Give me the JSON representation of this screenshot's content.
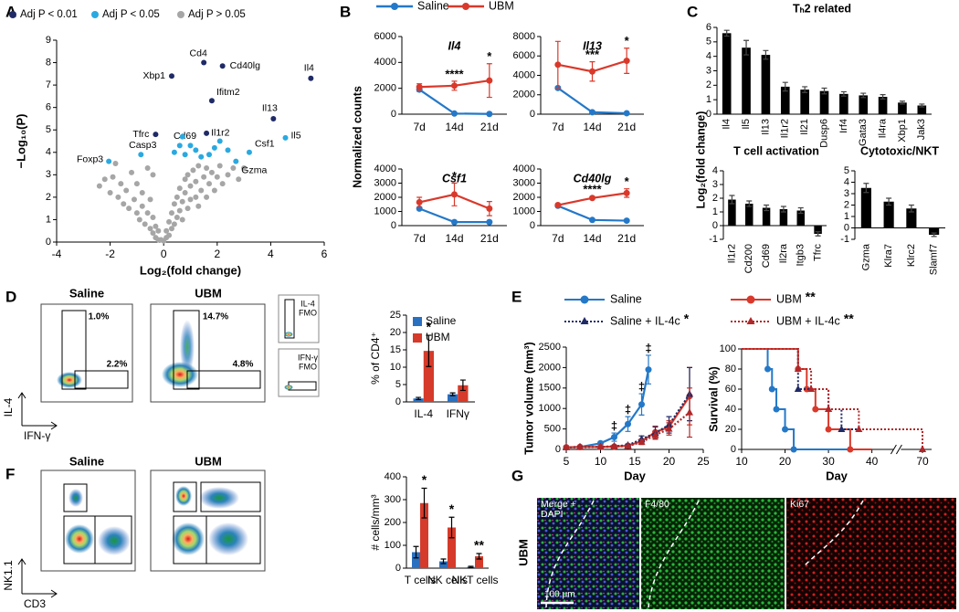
{
  "panels": [
    "A",
    "B",
    "C",
    "D",
    "E",
    "F",
    "G"
  ],
  "chart_data": [
    {
      "type": "scatter",
      "xlabel": "Log₂(fold change)",
      "ylabel": "−Log₁₀(P)",
      "xlim": [
        -4,
        6
      ],
      "xticks": [
        -4,
        -2,
        0,
        2,
        4,
        6
      ],
      "ylim": [
        0,
        9
      ],
      "yticks": [
        0,
        1,
        2,
        3,
        4,
        5,
        6,
        7,
        8,
        9
      ],
      "series": [
        {
          "name": "Adj P < 0.01",
          "color": "#1f2a66",
          "x": [
            5.5,
            1.5,
            2.2,
            0.3,
            1.8,
            4.1,
            -0.3,
            1.6
          ],
          "values": [
            7.3,
            8.0,
            7.85,
            7.4,
            6.3,
            5.5,
            4.8,
            4.85
          ],
          "point_labels": [
            "Il4",
            "Cd4",
            "Cd40lg",
            "Xbp1",
            "Ifitm2",
            "Il13",
            "Tfrc",
            "Il1r2"
          ]
        },
        {
          "name": "Adj P < 0.05",
          "color": "#2aa9e0",
          "x": [
            4.55,
            3.2,
            2.7,
            -0.85,
            -2.05,
            1.0,
            0.4,
            0.6,
            0.8,
            1.2,
            1.4,
            1.9,
            2.1,
            1.7,
            2.4,
            0.7
          ],
          "values": [
            4.65,
            4.0,
            3.6,
            3.9,
            3.6,
            4.3,
            4.0,
            4.3,
            3.9,
            4.1,
            3.8,
            4.2,
            4.5,
            3.9,
            4.1,
            4.7
          ],
          "point_labels": [
            "Il5",
            "Csf1",
            "Gzma",
            "Casp3",
            "Foxp3",
            "Cd69",
            null,
            null,
            null,
            null,
            null,
            null,
            null,
            null,
            null,
            null
          ]
        },
        {
          "name": "Adj P > 0.05",
          "color": "#a6a6a6",
          "x": [
            -2.4,
            -2.2,
            -2.0,
            -1.9,
            -1.7,
            -1.6,
            -1.5,
            -1.4,
            -1.3,
            -1.2,
            -1.1,
            -1.0,
            -1.0,
            -0.9,
            -0.8,
            -0.8,
            -0.7,
            -0.6,
            -0.6,
            -0.5,
            -0.5,
            -0.4,
            -0.4,
            -0.3,
            -0.3,
            -0.2,
            -0.2,
            -0.1,
            0,
            0.1,
            0.1,
            0.2,
            0.2,
            0.3,
            0.3,
            0.4,
            0.4,
            0.5,
            0.5,
            0.6,
            0.6,
            0.7,
            0.7,
            0.8,
            0.8,
            0.9,
            0.9,
            1.0,
            1.0,
            1.1,
            1.2,
            1.2,
            1.3,
            1.3,
            1.4,
            1.5,
            1.6,
            1.6,
            1.7,
            1.8,
            1.9,
            2.0,
            2.1,
            2.2,
            2.4,
            2.6,
            2.8,
            3.0,
            -1.8,
            -0.4
          ],
          "values": [
            2.5,
            2.8,
            2.2,
            2.9,
            2.0,
            2.6,
            1.7,
            2.3,
            1.5,
            3.1,
            1.9,
            1.3,
            2.6,
            1.0,
            1.6,
            2.2,
            0.8,
            1.3,
            3.3,
            0.6,
            1.9,
            0.4,
            1.1,
            0.2,
            0.7,
            0.1,
            0.5,
            0.1,
            0.05,
            0.2,
            0.5,
            0.3,
            0.9,
            0.6,
            1.3,
            0.8,
            1.7,
            1.1,
            2.0,
            1.4,
            2.4,
            1.0,
            1.8,
            2.2,
            2.8,
            1.5,
            3.0,
            1.9,
            2.5,
            3.2,
            2.0,
            2.7,
            1.6,
            3.4,
            2.3,
            2.9,
            2.0,
            3.3,
            2.6,
            3.1,
            2.3,
            2.9,
            3.4,
            2.6,
            3.0,
            3.3,
            2.8,
            3.3,
            3.5,
            3.0
          ]
        }
      ]
    },
    {
      "type": "line",
      "title": "Il4",
      "ylabel": "Normalized counts",
      "categories": [
        "7d",
        "14d",
        "21d"
      ],
      "ylim": [
        0,
        6000
      ],
      "yticks": [
        0,
        2000,
        4000,
        6000
      ],
      "series": [
        {
          "name": "Saline",
          "color": "#2478c8",
          "values": [
            1900,
            50,
            20
          ],
          "errors": [
            150,
            20,
            10
          ]
        },
        {
          "name": "UBM",
          "color": "#d9392b",
          "values": [
            2100,
            2200,
            2600
          ],
          "errors": [
            250,
            350,
            1300
          ],
          "significance": [
            null,
            "****",
            "*"
          ]
        }
      ]
    },
    {
      "type": "line",
      "title": "Il13",
      "categories": [
        "7d",
        "14d",
        "21d"
      ],
      "ylim": [
        0,
        8000
      ],
      "yticks": [
        0,
        2000,
        4000,
        6000,
        8000
      ],
      "series": [
        {
          "color": "#2478c8",
          "values": [
            2700,
            200,
            100
          ],
          "errors": [
            150,
            100,
            50
          ]
        },
        {
          "color": "#d9392b",
          "values": [
            5100,
            4400,
            5500
          ],
          "errors": [
            2400,
            1000,
            1300
          ],
          "significance": [
            null,
            "***",
            "*"
          ]
        }
      ]
    },
    {
      "type": "line",
      "title": "Csf1",
      "categories": [
        "7d",
        "14d",
        "21d"
      ],
      "ylim": [
        0,
        4000
      ],
      "yticks": [
        0,
        1000,
        2000,
        3000,
        4000
      ],
      "series": [
        {
          "color": "#2478c8",
          "values": [
            1200,
            250,
            250
          ],
          "errors": [
            80,
            30,
            30
          ]
        },
        {
          "color": "#d9392b",
          "values": [
            1650,
            2200,
            1200
          ],
          "errors": [
            350,
            800,
            500
          ],
          "significance": [
            null,
            "*",
            null
          ]
        }
      ]
    },
    {
      "type": "line",
      "title": "Cd40lg",
      "categories": [
        "7d",
        "14d",
        "21d"
      ],
      "ylim": [
        0,
        4000
      ],
      "yticks": [
        0,
        1000,
        2000,
        3000,
        4000
      ],
      "series": [
        {
          "color": "#2478c8",
          "values": [
            1400,
            400,
            350
          ],
          "errors": [
            60,
            40,
            40
          ]
        },
        {
          "color": "#d9392b",
          "values": [
            1450,
            1950,
            2300
          ],
          "errors": [
            80,
            100,
            300
          ],
          "significance": [
            null,
            "****",
            "*"
          ]
        }
      ]
    },
    {
      "type": "bar",
      "title": "Tₕ2 related",
      "ylabel": "Log₂(fold change)",
      "color": "#000000",
      "xtick_rotation": -90,
      "categories": [
        "Il4",
        "Il5",
        "Il13",
        "Il1r2",
        "Il21",
        "Dusp6",
        "Irf4",
        "Gata3",
        "Il4ra",
        "Xbp1",
        "Jak3"
      ],
      "values": [
        5.6,
        4.6,
        4.1,
        1.9,
        1.7,
        1.6,
        1.4,
        1.3,
        1.2,
        0.8,
        0.6
      ],
      "errors": [
        0.2,
        0.5,
        0.3,
        0.3,
        0.2,
        0.2,
        0.15,
        0.15,
        0.15,
        0.1,
        0.1
      ],
      "ylim": [
        0,
        6
      ],
      "yticks": [
        0,
        1,
        2,
        3,
        4,
        5,
        6
      ]
    },
    {
      "type": "bar",
      "title": "T cell activation",
      "color": "#000000",
      "xtick_rotation": -90,
      "categories": [
        "Il1r2",
        "Cd200",
        "Cd69",
        "Il2ra",
        "Itgb3",
        "Tfrc"
      ],
      "values": [
        1.9,
        1.6,
        1.3,
        1.2,
        1.1,
        -0.6
      ],
      "errors": [
        0.3,
        0.2,
        0.2,
        0.2,
        0.2,
        0.15
      ],
      "ylim": [
        -1,
        4
      ],
      "yticks": [
        -1,
        0,
        1,
        2,
        3,
        4
      ]
    },
    {
      "type": "bar",
      "title": "Cytotoxic/NKT",
      "color": "#000000",
      "xtick_rotation": -90,
      "categories": [
        "Gzma",
        "Klra7",
        "Klrc2",
        "Slamf7"
      ],
      "values": [
        3.5,
        2.3,
        1.7,
        -0.6
      ],
      "errors": [
        0.4,
        0.3,
        0.3,
        0.15
      ],
      "ylim": [
        -1,
        5
      ],
      "yticks": [
        -1,
        0,
        1,
        2,
        3,
        4,
        5
      ]
    },
    {
      "type": "bar",
      "ylabel": "% of CD4⁺",
      "categories": [
        "IL-4",
        "IFNγ"
      ],
      "ylim": [
        0,
        25
      ],
      "yticks": [
        0,
        5,
        10,
        15,
        20,
        25
      ],
      "series": [
        {
          "name": "Saline",
          "color": "#2a70c0",
          "values": [
            1.0,
            2.2
          ],
          "errors": [
            0.3,
            0.4
          ]
        },
        {
          "name": "UBM",
          "color": "#d63a2a",
          "values": [
            14.7,
            4.8
          ],
          "errors": [
            4.5,
            1.5
          ],
          "significance": [
            "*",
            null
          ]
        }
      ]
    },
    {
      "type": "bar",
      "ylabel": "# cells/mm³",
      "categories": [
        "T cells",
        "NK cells",
        "NKT cells"
      ],
      "ylim": [
        0,
        400
      ],
      "yticks": [
        0,
        100,
        200,
        300,
        400
      ],
      "series": [
        {
          "color": "#2a70c0",
          "values": [
            70,
            30,
            5
          ],
          "errors": [
            25,
            10,
            3
          ]
        },
        {
          "color": "#d63a2a",
          "values": [
            285,
            178,
            52
          ],
          "errors": [
            65,
            45,
            12
          ],
          "significance": [
            "*",
            "*",
            "**"
          ]
        }
      ]
    },
    {
      "type": "line",
      "xlabel": "Day",
      "ylabel": "Tumor volume (mm³)",
      "xlim": [
        5,
        25
      ],
      "xticks": [
        5,
        10,
        15,
        20,
        25
      ],
      "ylim": [
        0,
        2500
      ],
      "yticks": [
        0,
        500,
        1000,
        1500,
        2000,
        2500
      ],
      "series": [
        {
          "name": "Saline",
          "color": "#2478c8",
          "marker": "circle",
          "linestyle": "solid",
          "x": [
            5,
            7,
            10,
            12,
            14,
            16,
            17
          ],
          "values": [
            50,
            60,
            150,
            300,
            620,
            1100,
            1950
          ],
          "errors": [
            10,
            15,
            40,
            100,
            180,
            260,
            350
          ],
          "significance": [
            null,
            null,
            null,
            "‡",
            "‡",
            "‡",
            "‡"
          ]
        },
        {
          "name": "UBM",
          "legend_mark": "**",
          "color": "#d9392b",
          "marker": "circle",
          "linestyle": "solid",
          "x": [
            5,
            7,
            10,
            12,
            14,
            16,
            18,
            20,
            23
          ],
          "values": [
            50,
            60,
            60,
            70,
            90,
            200,
            420,
            550,
            1300
          ],
          "errors": [
            10,
            10,
            15,
            20,
            30,
            60,
            150,
            150,
            700
          ]
        },
        {
          "name": "Saline + IL-4c",
          "legend_mark": "*",
          "color": "#1f2a66",
          "marker": "triangle",
          "linestyle": "dotted",
          "x": [
            5,
            7,
            10,
            12,
            14,
            16,
            18,
            20,
            23
          ],
          "values": [
            50,
            60,
            60,
            80,
            100,
            250,
            400,
            600,
            1350
          ],
          "errors": [
            10,
            10,
            15,
            20,
            30,
            80,
            150,
            200,
            650
          ]
        },
        {
          "name": "UBM + IL-4c",
          "legend_mark": "**",
          "color": "#b0282a",
          "marker": "triangle",
          "linestyle": "dotted",
          "x": [
            5,
            7,
            10,
            12,
            14,
            16,
            18,
            20,
            23
          ],
          "values": [
            50,
            50,
            60,
            70,
            80,
            180,
            350,
            500,
            900
          ],
          "errors": [
            10,
            10,
            15,
            20,
            25,
            60,
            100,
            150,
            600
          ]
        }
      ]
    },
    {
      "type": "step",
      "xlabel": "Day",
      "ylabel": "Survival (%)",
      "xlim": [
        10,
        70
      ],
      "xticks": [
        10,
        20,
        30,
        40,
        70
      ],
      "axis_break": [
        45,
        65
      ],
      "ylim": [
        0,
        100
      ],
      "yticks": [
        0,
        20,
        40,
        60,
        80,
        100
      ],
      "series": [
        {
          "color": "#2478c8",
          "marker": "circle",
          "linestyle": "solid",
          "x": [
            10,
            16,
            16,
            17,
            17,
            18,
            18,
            20,
            20,
            22,
            22,
            38
          ],
          "values": [
            100,
            100,
            80,
            80,
            60,
            60,
            40,
            40,
            20,
            20,
            0,
            0
          ]
        },
        {
          "color": "#d9392b",
          "marker": "circle",
          "linestyle": "solid",
          "x": [
            10,
            23,
            23,
            25,
            25,
            27,
            27,
            30,
            30,
            35,
            35,
            40
          ],
          "values": [
            100,
            100,
            80,
            80,
            60,
            60,
            40,
            40,
            20,
            20,
            0,
            0
          ]
        },
        {
          "color": "#1f2a66",
          "marker": "triangle",
          "linestyle": "dotted",
          "x": [
            10,
            23,
            23,
            30,
            30,
            33,
            33,
            70,
            70
          ],
          "values": [
            100,
            100,
            60,
            60,
            40,
            40,
            20,
            20,
            0
          ]
        },
        {
          "color": "#b0282a",
          "marker": "triangle",
          "linestyle": "dotted",
          "x": [
            10,
            23,
            23,
            26,
            26,
            30,
            30,
            37,
            37,
            70,
            70
          ],
          "values": [
            100,
            100,
            80,
            80,
            60,
            60,
            40,
            40,
            20,
            20,
            0
          ]
        }
      ]
    }
  ],
  "flow_d": {
    "plots": [
      {
        "title": "Saline",
        "gates": [
          "1.0%",
          "2.2%"
        ]
      },
      {
        "title": "UBM",
        "gates": [
          "14.7%",
          "4.8%"
        ]
      }
    ],
    "fmo": [
      [
        "IL-4",
        "FMO"
      ],
      [
        "IFN-γ",
        "FMO"
      ]
    ],
    "ylabel": "IL-4",
    "xlabel": "IFN-γ"
  },
  "flow_e": {
    "plots": [
      {
        "title": "Saline"
      },
      {
        "title": "UBM"
      }
    ],
    "ylabel": "NK1.1",
    "xlabel": "CD3"
  },
  "images": {
    "row_label": "UBM",
    "panels": [
      {
        "lines": [
          "Merge +",
          "DAPI"
        ]
      },
      {
        "lines": [
          "F4/80"
        ]
      },
      {
        "lines": [
          "Ki67"
        ]
      }
    ],
    "scale_bar": "100 μm"
  }
}
